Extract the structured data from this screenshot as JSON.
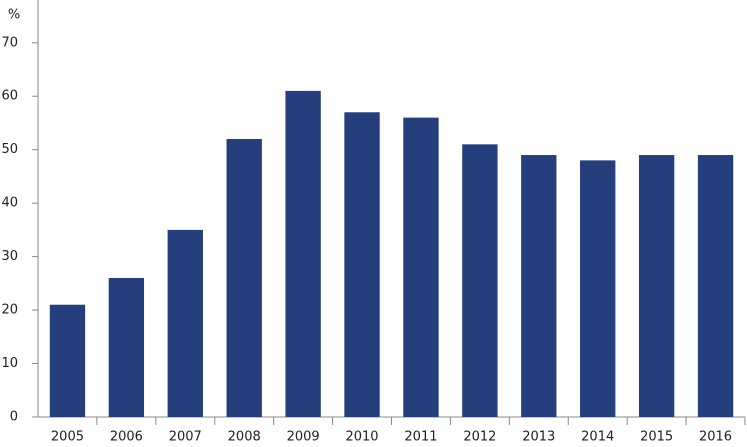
{
  "chart_data": {
    "type": "bar",
    "y_axis_label": "%",
    "categories": [
      "2005",
      "2006",
      "2007",
      "2008",
      "2009",
      "2010",
      "2011",
      "2012",
      "2013",
      "2014",
      "2015",
      "2016"
    ],
    "values": [
      21,
      26,
      35,
      52,
      61,
      57,
      56,
      51,
      49,
      48,
      49,
      49
    ],
    "color": "#243f7c",
    "ylim": [
      0,
      78
    ],
    "yticks": [
      0,
      10,
      20,
      30,
      40,
      50,
      60,
      70
    ],
    "grid": false
  }
}
